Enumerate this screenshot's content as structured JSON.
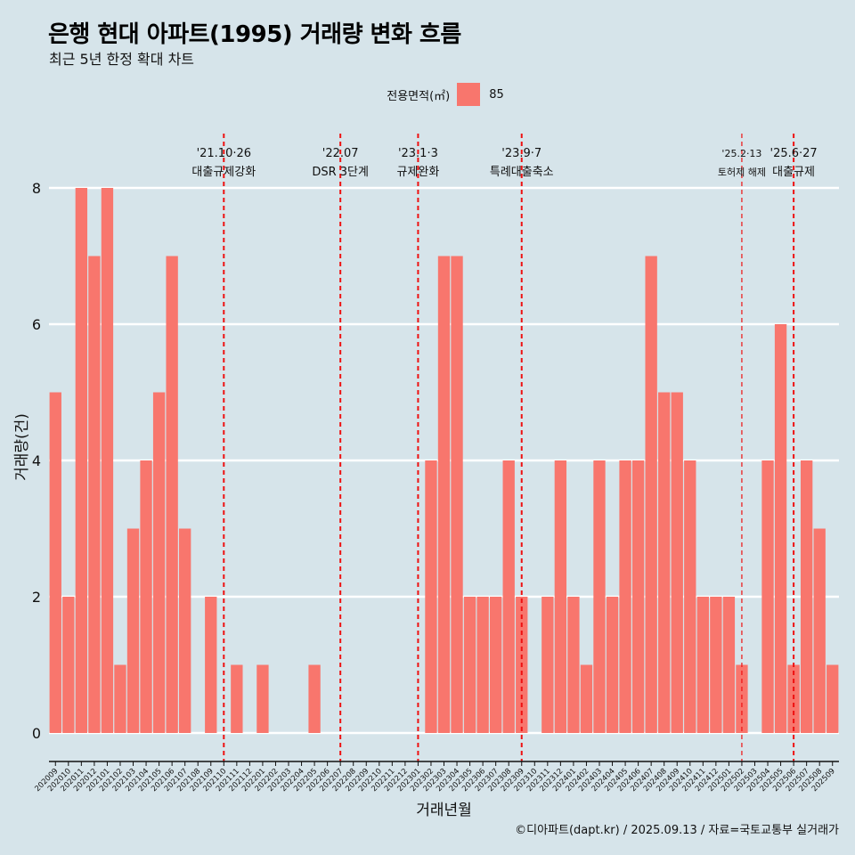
{
  "title": "은행 현대 아파트(1995) 거래량 변화 흐름",
  "subtitle": "최근 5년 한정 확대 차트",
  "legend": {
    "title": "전용면적(㎡)",
    "items": [
      {
        "label": "85",
        "color": "#f8766d"
      }
    ]
  },
  "caption": "©디아파트(dapt.kr) / 2025.09.13 / 자료=국토교통부 실거래가",
  "colors": {
    "background": "#d6e4ea",
    "bar": "#f8766d",
    "grid": "#ffffff",
    "event_line": "#ee1111"
  },
  "chart_data": {
    "type": "bar",
    "xlabel": "거래년월",
    "ylabel": "거래량(건)",
    "ylim": [
      0,
      8
    ],
    "yticks": [
      0,
      2,
      4,
      6,
      8
    ],
    "grid": true,
    "legend_position": "top",
    "categories": [
      "202009",
      "202010",
      "202011",
      "202012",
      "202101",
      "202102",
      "202103",
      "202104",
      "202105",
      "202106",
      "202107",
      "202108",
      "202109",
      "202110",
      "202111",
      "202112",
      "202201",
      "202202",
      "202203",
      "202204",
      "202205",
      "202206",
      "202207",
      "202208",
      "202209",
      "202210",
      "202211",
      "202212",
      "202301",
      "202302",
      "202303",
      "202304",
      "202305",
      "202306",
      "202307",
      "202308",
      "202309",
      "202310",
      "202311",
      "202312",
      "202401",
      "202402",
      "202403",
      "202404",
      "202405",
      "202406",
      "202407",
      "202408",
      "202409",
      "202410",
      "202411",
      "202412",
      "202501",
      "202502",
      "202503",
      "202504",
      "202505",
      "202506",
      "202507",
      "202508",
      "202509"
    ],
    "series": [
      {
        "name": "85",
        "values": [
          5,
          2,
          8,
          7,
          8,
          1,
          3,
          4,
          5,
          7,
          3,
          0,
          2,
          0,
          1,
          0,
          1,
          0,
          0,
          0,
          1,
          0,
          0,
          0,
          0,
          0,
          0,
          0,
          0,
          4,
          7,
          7,
          2,
          2,
          2,
          4,
          2,
          0,
          2,
          4,
          2,
          1,
          4,
          2,
          4,
          4,
          7,
          5,
          5,
          4,
          2,
          2,
          2,
          1,
          0,
          4,
          6,
          1,
          4,
          3,
          1
        ]
      }
    ],
    "annotations": [
      {
        "date": "'21.10·26",
        "label": "대출규제강화",
        "x": "202110"
      },
      {
        "date": "'22.07",
        "label": "DSR 3단계",
        "x": "202207"
      },
      {
        "date": "'23.1·3",
        "label": "규제완화",
        "x": "202301"
      },
      {
        "date": "'23.9·7",
        "label": "특례대출축소",
        "x": "202309"
      },
      {
        "date": "'25.2·13",
        "label": "토허제 해제",
        "x": "202502"
      },
      {
        "date": "'25.6·27",
        "label": "대출규제",
        "x": "202506"
      }
    ]
  }
}
